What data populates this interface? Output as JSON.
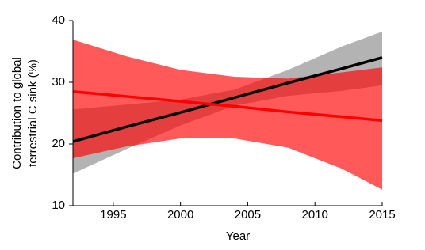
{
  "chart_data": {
    "type": "line",
    "y_label": [
      "Contribution to global",
      "terrestrial C sink (%)"
    ],
    "x_label": "Year",
    "x": [
      1992,
      1996,
      2000,
      2004,
      2008,
      2012,
      2015
    ],
    "xlim": [
      1992,
      2015
    ],
    "xticks": [
      1995,
      2000,
      2005,
      2010,
      2015
    ],
    "ylim": [
      10,
      40
    ],
    "yticks": [
      10,
      20,
      30,
      40
    ],
    "series": [
      {
        "color": "#000000",
        "band_color": "#b3b3b3",
        "band_opacity": 1,
        "values": [
          20.4,
          22.8,
          25.1,
          27.5,
          29.9,
          32.2,
          34.0
        ],
        "lower": [
          15.2,
          19.2,
          23.0,
          26.2,
          27.8,
          28.6,
          29.5
        ],
        "upper": [
          25.6,
          26.4,
          27.2,
          28.8,
          32.0,
          35.8,
          38.2
        ]
      },
      {
        "color": "#ff0000",
        "band_color": "#ff0000",
        "band_opacity": 0.65,
        "values": [
          28.5,
          27.7,
          26.9,
          26.1,
          25.2,
          24.4,
          23.8
        ],
        "lower": [
          17.7,
          19.6,
          20.9,
          20.9,
          19.4,
          16.0,
          12.6
        ],
        "upper": [
          36.9,
          34.2,
          32.0,
          30.9,
          30.6,
          31.6,
          32.4
        ]
      }
    ]
  }
}
